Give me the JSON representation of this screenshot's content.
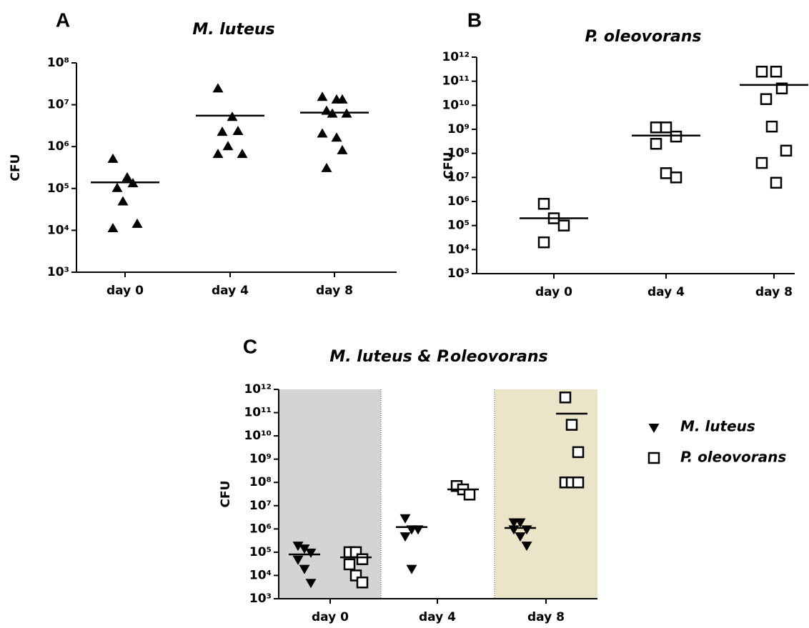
{
  "chart_data": [
    {
      "type": "scatter",
      "panel_label": "A",
      "title": "M. luteus",
      "y_label": "CFU",
      "y_scale": "log",
      "categories": [
        "day 0",
        "day 4",
        "day 8"
      ],
      "ylim": [
        1000,
        100000000
      ],
      "yticks": [
        {
          "value": 1000,
          "label": "10³"
        },
        {
          "value": 10000,
          "label": "10⁴"
        },
        {
          "value": 100000,
          "label": "10⁵"
        },
        {
          "value": 1000000,
          "label": "10⁶"
        },
        {
          "value": 10000000,
          "label": "10⁷"
        },
        {
          "value": 100000000,
          "label": "10⁸"
        }
      ],
      "series": [
        {
          "marker": "triangle-up",
          "color": "#000000",
          "values": [
            [
              500000,
              180000,
              130000,
              100000,
              48000,
              14000,
              11000
            ],
            [
              24000000,
              5000000,
              2300000,
              2200000,
              1000000,
              650000,
              650000
            ],
            [
              15000000,
              13000000,
              13000000,
              7000000,
              6000000,
              6000000,
              2000000,
              1600000,
              800000,
              300000
            ]
          ],
          "means": [
            140000,
            5500000,
            6500000
          ]
        }
      ]
    },
    {
      "type": "scatter",
      "panel_label": "B",
      "title": "P. oleovorans",
      "y_label": "CFU",
      "y_scale": "log",
      "categories": [
        "day 0",
        "day 4",
        "day 8"
      ],
      "ylim": [
        1000,
        1000000000000
      ],
      "yticks": [
        {
          "value": 1000,
          "label": "10³"
        },
        {
          "value": 10000,
          "label": "10⁴"
        },
        {
          "value": 100000,
          "label": "10⁵"
        },
        {
          "value": 1000000,
          "label": "10⁶"
        },
        {
          "value": 10000000,
          "label": "10⁷"
        },
        {
          "value": 100000000,
          "label": "10⁸"
        },
        {
          "value": 1000000000,
          "label": "10⁹"
        },
        {
          "value": 10000000000,
          "label": "10¹⁰"
        },
        {
          "value": 100000000000,
          "label": "10¹¹"
        },
        {
          "value": 1000000000000,
          "label": "10¹²"
        }
      ],
      "series": [
        {
          "marker": "square",
          "color": "#000000",
          "values": [
            [
              800000,
              200000,
              100000,
              20000
            ],
            [
              1200000000,
              1200000000,
              500000000,
              250000000,
              15000000,
              10000000
            ],
            [
              250000000000,
              250000000000,
              50000000000,
              18000000000,
              1300000000,
              130000000,
              40000000,
              6000000
            ]
          ],
          "means": [
            200000,
            550000000,
            70000000000
          ]
        }
      ]
    },
    {
      "type": "scatter",
      "panel_label": "C",
      "title": "M. luteus & P.oleovorans",
      "y_label": "CFU",
      "y_scale": "log",
      "categories": [
        "day 0",
        "day 4",
        "day 8"
      ],
      "band_colors": [
        "#d4d4d4",
        "#ffffff",
        "#ece4c8"
      ],
      "ylim": [
        1000,
        1000000000000
      ],
      "yticks": [
        {
          "value": 1000,
          "label": "10³"
        },
        {
          "value": 10000,
          "label": "10⁴"
        },
        {
          "value": 100000,
          "label": "10⁵"
        },
        {
          "value": 1000000,
          "label": "10⁶"
        },
        {
          "value": 10000000,
          "label": "10⁷"
        },
        {
          "value": 100000000,
          "label": "10⁸"
        },
        {
          "value": 1000000000,
          "label": "10⁹"
        },
        {
          "value": 10000000000,
          "label": "10¹⁰"
        },
        {
          "value": 100000000000,
          "label": "10¹¹"
        },
        {
          "value": 1000000000000,
          "label": "10¹²"
        }
      ],
      "series": [
        {
          "name": "M. luteus",
          "marker": "triangle-down",
          "color": "#000000",
          "values": [
            [
              200000,
              150000,
              100000,
              50000,
              20000,
              5000
            ],
            [
              3000000,
              1000000,
              1000000,
              500000,
              20000
            ],
            [
              2000000,
              2000000,
              1000000,
              1000000,
              500000,
              200000
            ]
          ],
          "means": [
            80000,
            1200000,
            1100000
          ]
        },
        {
          "name": "P. oleovorans",
          "marker": "square",
          "color": "#000000",
          "values": [
            [
              100000,
              100000,
              50000,
              30000,
              10000,
              5000
            ],
            [
              70000000,
              50000000,
              30000000
            ],
            [
              450000000000,
              30000000000,
              2000000000,
              100000000,
              100000000,
              100000000
            ]
          ],
          "means": [
            60000,
            50000000,
            90000000000
          ]
        }
      ]
    }
  ]
}
